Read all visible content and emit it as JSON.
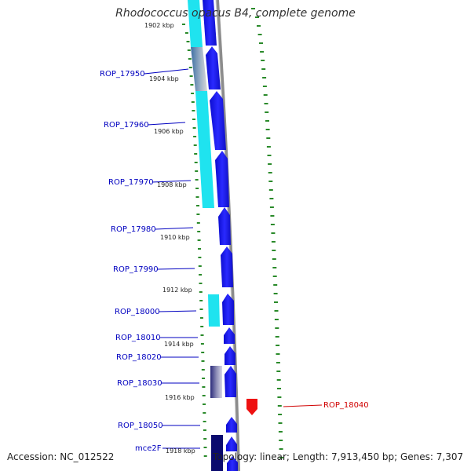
{
  "title": "Rhodococcus opacus B4, complete genome",
  "accession": "Accession: NC_012522",
  "topology": "Topology: linear; Length: 7,913,450 bp; Genes: 7,307",
  "colors": {
    "gene_blue": "#1a1ae6",
    "gene_dark": "#0a0a8c",
    "gene_red": "#ee1111",
    "feature_cyan": "#1fe3ef",
    "feature_steel": "#4a7fb0",
    "label_blue": "#0000c0",
    "label_red": "#d00000",
    "dots_green": "#2a8a2a",
    "backbone_gray": "#888888"
  },
  "ruler_labels": [
    {
      "text": "1902 kbp"
    },
    {
      "text": "1904 kbp"
    },
    {
      "text": "1906 kbp"
    },
    {
      "text": "1908 kbp"
    },
    {
      "text": "1910 kbp"
    },
    {
      "text": "1912 kbp"
    },
    {
      "text": "1914 kbp"
    },
    {
      "text": "1916 kbp"
    },
    {
      "text": "1918 kbp"
    }
  ],
  "gene_labels": [
    {
      "text": "ROP_17950"
    },
    {
      "text": "ROP_17960"
    },
    {
      "text": "ROP_17970"
    },
    {
      "text": "ROP_17980"
    },
    {
      "text": "ROP_17990"
    },
    {
      "text": "ROP_18000"
    },
    {
      "text": "ROP_18010"
    },
    {
      "text": "ROP_18020"
    },
    {
      "text": "ROP_18030"
    },
    {
      "text": "ROP_18040"
    },
    {
      "text": "ROP_18050"
    },
    {
      "text": "mce2F"
    }
  ]
}
